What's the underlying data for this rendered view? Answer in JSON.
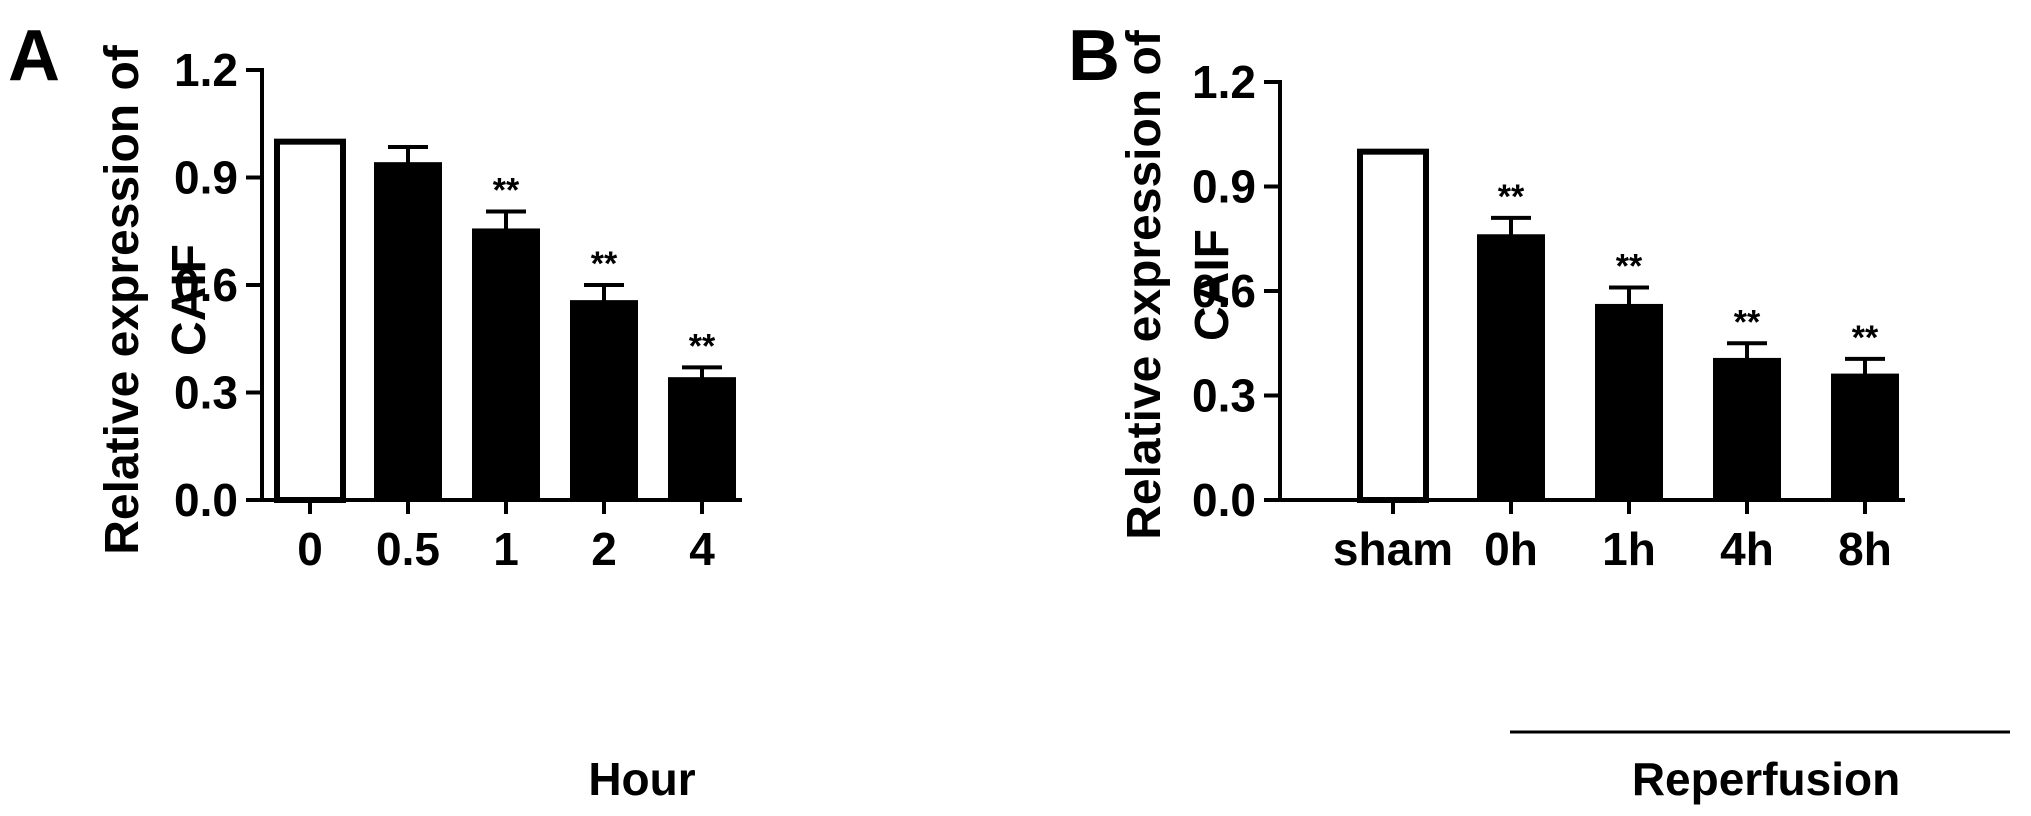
{
  "colors": {
    "ink": "#000000",
    "background": "#ffffff"
  },
  "chart_data": [
    {
      "panel_label": "A",
      "type": "bar",
      "ylabel_line1": "Relative expression of",
      "ylabel_line2": "CAIF",
      "xlabel": "Hour",
      "ylim": [
        0,
        1.2
      ],
      "yticks": [
        "0.0",
        "0.3",
        "0.6",
        "0.9",
        "1.2"
      ],
      "ytick_values": [
        0,
        0.3,
        0.6,
        0.9,
        1.2
      ],
      "categories": [
        "0",
        "0.5",
        "1",
        "2",
        "4"
      ],
      "values": [
        1.0,
        0.94,
        0.755,
        0.555,
        0.34
      ],
      "errors": [
        0,
        0.045,
        0.05,
        0.045,
        0.03
      ],
      "fills": [
        "#ffffff",
        "#000000",
        "#000000",
        "#000000",
        "#000000"
      ],
      "significance": [
        "",
        "",
        "**",
        "**",
        "**"
      ]
    },
    {
      "panel_label": "B",
      "type": "bar",
      "ylabel_line1": "Relative expression of",
      "ylabel_line2": "CAIF",
      "xlabel": "Reperfusion",
      "ylim": [
        0,
        1.2
      ],
      "yticks": [
        "0.0",
        "0.3",
        "0.6",
        "0.9",
        "1.2"
      ],
      "ytick_values": [
        0,
        0.3,
        0.6,
        0.9,
        1.2
      ],
      "categories": [
        "sham",
        "0h",
        "1h",
        "4h",
        "8h"
      ],
      "values": [
        1.0,
        0.76,
        0.56,
        0.405,
        0.36
      ],
      "errors": [
        0,
        0.05,
        0.05,
        0.045,
        0.045
      ],
      "fills": [
        "#ffffff",
        "#000000",
        "#000000",
        "#000000",
        "#000000"
      ],
      "significance": [
        "",
        "**",
        "**",
        "**",
        "**"
      ]
    }
  ]
}
